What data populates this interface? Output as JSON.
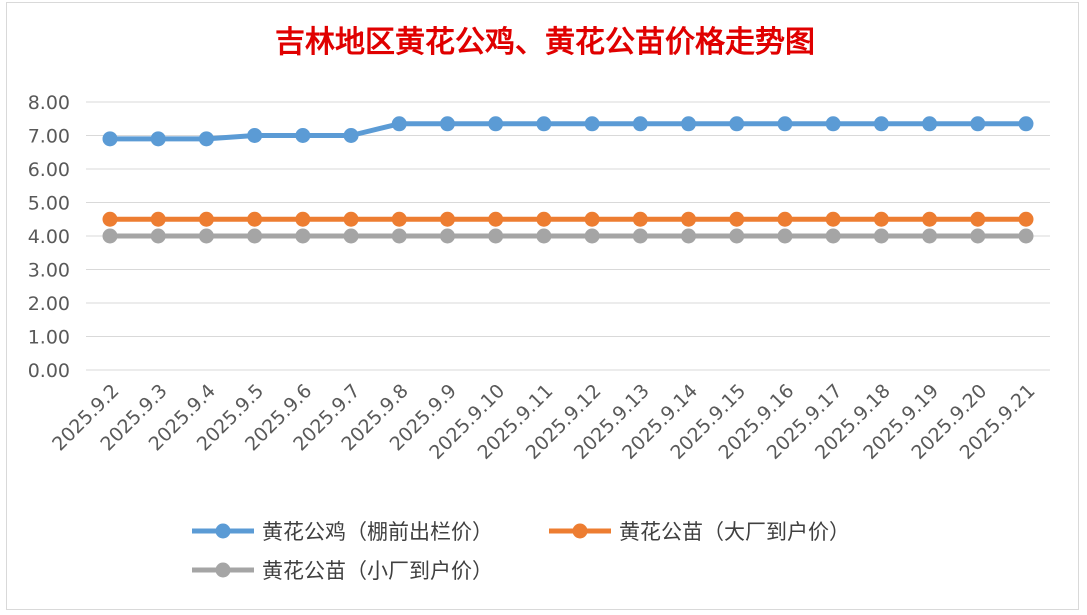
{
  "chart_data": {
    "type": "line",
    "title": "吉林地区黄花公鸡、黄花公苗价格走势图",
    "categories": [
      "2025.9.2",
      "2025.9.3",
      "2025.9.4",
      "2025.9.5",
      "2025.9.6",
      "2025.9.7",
      "2025.9.8",
      "2025.9.9",
      "2025.9.10",
      "2025.9.11",
      "2025.9.12",
      "2025.9.13",
      "2025.9.14",
      "2025.9.15",
      "2025.9.16",
      "2025.9.17",
      "2025.9.18",
      "2025.9.19",
      "2025.9.20",
      "2025.9.21"
    ],
    "yticks": [
      "0.00",
      "1.00",
      "2.00",
      "3.00",
      "4.00",
      "5.00",
      "6.00",
      "7.00",
      "8.00"
    ],
    "ylim": [
      0,
      8
    ],
    "grid": true,
    "legend_position": "bottom",
    "series": [
      {
        "name": "黄花公鸡（棚前出栏价）",
        "color": "#5b9bd5",
        "values": [
          6.9,
          6.9,
          6.9,
          7.0,
          7.0,
          7.0,
          7.35,
          7.35,
          7.35,
          7.35,
          7.35,
          7.35,
          7.35,
          7.35,
          7.35,
          7.35,
          7.35,
          7.35,
          7.35,
          7.35
        ]
      },
      {
        "name": "黄花公苗（大厂到户价）",
        "color": "#ed7d31",
        "values": [
          4.5,
          4.5,
          4.5,
          4.5,
          4.5,
          4.5,
          4.5,
          4.5,
          4.5,
          4.5,
          4.5,
          4.5,
          4.5,
          4.5,
          4.5,
          4.5,
          4.5,
          4.5,
          4.5,
          4.5
        ]
      },
      {
        "name": "黄花公苗（小厂到户价）",
        "color": "#a5a5a5",
        "values": [
          4.0,
          4.0,
          4.0,
          4.0,
          4.0,
          4.0,
          4.0,
          4.0,
          4.0,
          4.0,
          4.0,
          4.0,
          4.0,
          4.0,
          4.0,
          4.0,
          4.0,
          4.0,
          4.0,
          4.0
        ]
      }
    ]
  }
}
